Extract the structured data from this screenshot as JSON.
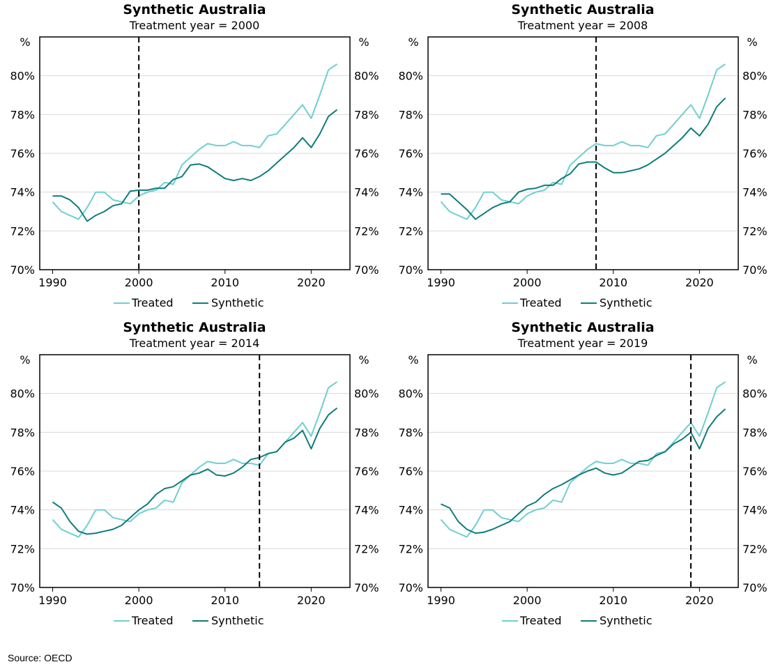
{
  "figure": {
    "source": "Source: OECD"
  },
  "legend": {
    "treated": "Treated",
    "synthetic": "Synthetic"
  },
  "colors": {
    "treated": "#6ECFD1",
    "synthetic": "#0E7C7B",
    "grid": "#D9D9D9",
    "frame": "#000000",
    "dash": "#000000"
  },
  "chart_data": [
    {
      "type": "line",
      "title": "Synthetic Australia",
      "subtitle": "Treatment year = 2000",
      "unit_left": "%",
      "unit_right": "%",
      "xlim": [
        1988.5,
        2024.5
      ],
      "xticks": [
        1990,
        2000,
        2010,
        2020
      ],
      "ylim": [
        70,
        82
      ],
      "yticks": [
        70,
        72,
        74,
        76,
        78,
        80
      ],
      "ytick_labels": [
        "70%",
        "72%",
        "74%",
        "76%",
        "78%",
        "80%"
      ],
      "treatment_year": 2000,
      "x": [
        1990,
        1991,
        1992,
        1993,
        1994,
        1995,
        1996,
        1997,
        1998,
        1999,
        2000,
        2001,
        2002,
        2003,
        2004,
        2005,
        2006,
        2007,
        2008,
        2009,
        2010,
        2011,
        2012,
        2013,
        2014,
        2015,
        2016,
        2017,
        2018,
        2019,
        2020,
        2021,
        2022,
        2023
      ],
      "series": [
        {
          "name": "Treated",
          "values": [
            73.5,
            73.0,
            72.8,
            72.6,
            73.2,
            74.0,
            74.0,
            73.6,
            73.5,
            73.4,
            73.8,
            74.0,
            74.1,
            74.5,
            74.4,
            75.4,
            75.8,
            76.2,
            76.5,
            76.4,
            76.4,
            76.6,
            76.4,
            76.4,
            76.3,
            76.9,
            77.0,
            77.5,
            78.0,
            78.5,
            77.8,
            79.0,
            80.3,
            80.6
          ]
        },
        {
          "name": "Synthetic",
          "values": [
            73.8,
            73.8,
            73.6,
            73.2,
            72.5,
            72.8,
            73.0,
            73.3,
            73.4,
            74.05,
            74.1,
            74.1,
            74.2,
            74.2,
            74.65,
            74.8,
            75.4,
            75.45,
            75.3,
            75.0,
            74.7,
            74.6,
            74.7,
            74.6,
            74.8,
            75.1,
            75.5,
            75.9,
            76.3,
            76.8,
            76.3,
            77.0,
            77.9,
            78.25
          ]
        }
      ]
    },
    {
      "type": "line",
      "title": "Synthetic Australia",
      "subtitle": "Treatment year = 2008",
      "unit_left": "%",
      "unit_right": "%",
      "xlim": [
        1988.5,
        2024.5
      ],
      "xticks": [
        1990,
        2000,
        2010,
        2020
      ],
      "ylim": [
        70,
        82
      ],
      "yticks": [
        70,
        72,
        74,
        76,
        78,
        80
      ],
      "ytick_labels": [
        "70%",
        "72%",
        "74%",
        "76%",
        "78%",
        "80%"
      ],
      "treatment_year": 2008,
      "x": [
        1990,
        1991,
        1992,
        1993,
        1994,
        1995,
        1996,
        1997,
        1998,
        1999,
        2000,
        2001,
        2002,
        2003,
        2004,
        2005,
        2006,
        2007,
        2008,
        2009,
        2010,
        2011,
        2012,
        2013,
        2014,
        2015,
        2016,
        2017,
        2018,
        2019,
        2020,
        2021,
        2022,
        2023
      ],
      "series": [
        {
          "name": "Treated",
          "values": [
            73.5,
            73.0,
            72.8,
            72.6,
            73.2,
            74.0,
            74.0,
            73.6,
            73.5,
            73.4,
            73.8,
            74.0,
            74.1,
            74.5,
            74.4,
            75.4,
            75.8,
            76.2,
            76.5,
            76.4,
            76.4,
            76.6,
            76.4,
            76.4,
            76.3,
            76.9,
            77.0,
            77.5,
            78.0,
            78.5,
            77.8,
            79.0,
            80.3,
            80.6
          ]
        },
        {
          "name": "Synthetic",
          "values": [
            73.9,
            73.9,
            73.5,
            73.1,
            72.6,
            72.9,
            73.2,
            73.4,
            73.5,
            74.0,
            74.15,
            74.2,
            74.35,
            74.35,
            74.7,
            74.95,
            75.45,
            75.55,
            75.55,
            75.25,
            75.0,
            75.0,
            75.1,
            75.2,
            75.4,
            75.7,
            76.0,
            76.4,
            76.8,
            77.3,
            76.9,
            77.5,
            78.4,
            78.85
          ]
        }
      ]
    },
    {
      "type": "line",
      "title": "Synthetic Australia",
      "subtitle": "Treatment year = 2014",
      "unit_left": "%",
      "unit_right": "%",
      "xlim": [
        1988.5,
        2024.5
      ],
      "xticks": [
        1990,
        2000,
        2010,
        2020
      ],
      "ylim": [
        70,
        82
      ],
      "yticks": [
        70,
        72,
        74,
        76,
        78,
        80
      ],
      "ytick_labels": [
        "70%",
        "72%",
        "74%",
        "76%",
        "78%",
        "80%"
      ],
      "treatment_year": 2014,
      "x": [
        1990,
        1991,
        1992,
        1993,
        1994,
        1995,
        1996,
        1997,
        1998,
        1999,
        2000,
        2001,
        2002,
        2003,
        2004,
        2005,
        2006,
        2007,
        2008,
        2009,
        2010,
        2011,
        2012,
        2013,
        2014,
        2015,
        2016,
        2017,
        2018,
        2019,
        2020,
        2021,
        2022,
        2023
      ],
      "series": [
        {
          "name": "Treated",
          "values": [
            73.5,
            73.0,
            72.8,
            72.6,
            73.2,
            74.0,
            74.0,
            73.6,
            73.5,
            73.4,
            73.8,
            74.0,
            74.1,
            74.5,
            74.4,
            75.4,
            75.8,
            76.2,
            76.5,
            76.4,
            76.4,
            76.6,
            76.4,
            76.4,
            76.3,
            76.9,
            77.0,
            77.5,
            78.0,
            78.5,
            77.8,
            79.0,
            80.3,
            80.6
          ]
        },
        {
          "name": "Synthetic",
          "values": [
            74.4,
            74.1,
            73.4,
            72.9,
            72.75,
            72.8,
            72.9,
            73.0,
            73.2,
            73.6,
            74.0,
            74.3,
            74.8,
            75.1,
            75.2,
            75.5,
            75.8,
            75.9,
            76.1,
            75.8,
            75.75,
            75.9,
            76.2,
            76.6,
            76.7,
            76.9,
            77.0,
            77.5,
            77.7,
            78.1,
            77.15,
            78.2,
            78.9,
            79.25
          ]
        }
      ]
    },
    {
      "type": "line",
      "title": "Synthetic Australia",
      "subtitle": "Treatment year = 2019",
      "unit_left": "%",
      "unit_right": "%",
      "xlim": [
        1988.5,
        2024.5
      ],
      "xticks": [
        1990,
        2000,
        2010,
        2020
      ],
      "ylim": [
        70,
        82
      ],
      "yticks": [
        70,
        72,
        74,
        76,
        78,
        80
      ],
      "ytick_labels": [
        "70%",
        "72%",
        "74%",
        "76%",
        "78%",
        "80%"
      ],
      "treatment_year": 2019,
      "x": [
        1990,
        1991,
        1992,
        1993,
        1994,
        1995,
        1996,
        1997,
        1998,
        1999,
        2000,
        2001,
        2002,
        2003,
        2004,
        2005,
        2006,
        2007,
        2008,
        2009,
        2010,
        2011,
        2012,
        2013,
        2014,
        2015,
        2016,
        2017,
        2018,
        2019,
        2020,
        2021,
        2022,
        2023
      ],
      "series": [
        {
          "name": "Treated",
          "values": [
            73.5,
            73.0,
            72.8,
            72.6,
            73.2,
            74.0,
            74.0,
            73.6,
            73.5,
            73.4,
            73.8,
            74.0,
            74.1,
            74.5,
            74.4,
            75.4,
            75.8,
            76.2,
            76.5,
            76.4,
            76.4,
            76.6,
            76.4,
            76.4,
            76.3,
            76.9,
            77.0,
            77.5,
            78.0,
            78.5,
            77.8,
            79.0,
            80.3,
            80.6
          ]
        },
        {
          "name": "Synthetic",
          "values": [
            74.3,
            74.1,
            73.4,
            73.0,
            72.8,
            72.85,
            73.0,
            73.2,
            73.4,
            73.8,
            74.2,
            74.4,
            74.8,
            75.1,
            75.3,
            75.55,
            75.8,
            76.0,
            76.15,
            75.9,
            75.8,
            75.9,
            76.2,
            76.5,
            76.55,
            76.8,
            77.0,
            77.4,
            77.65,
            78.0,
            77.15,
            78.2,
            78.8,
            79.2
          ]
        }
      ]
    }
  ]
}
